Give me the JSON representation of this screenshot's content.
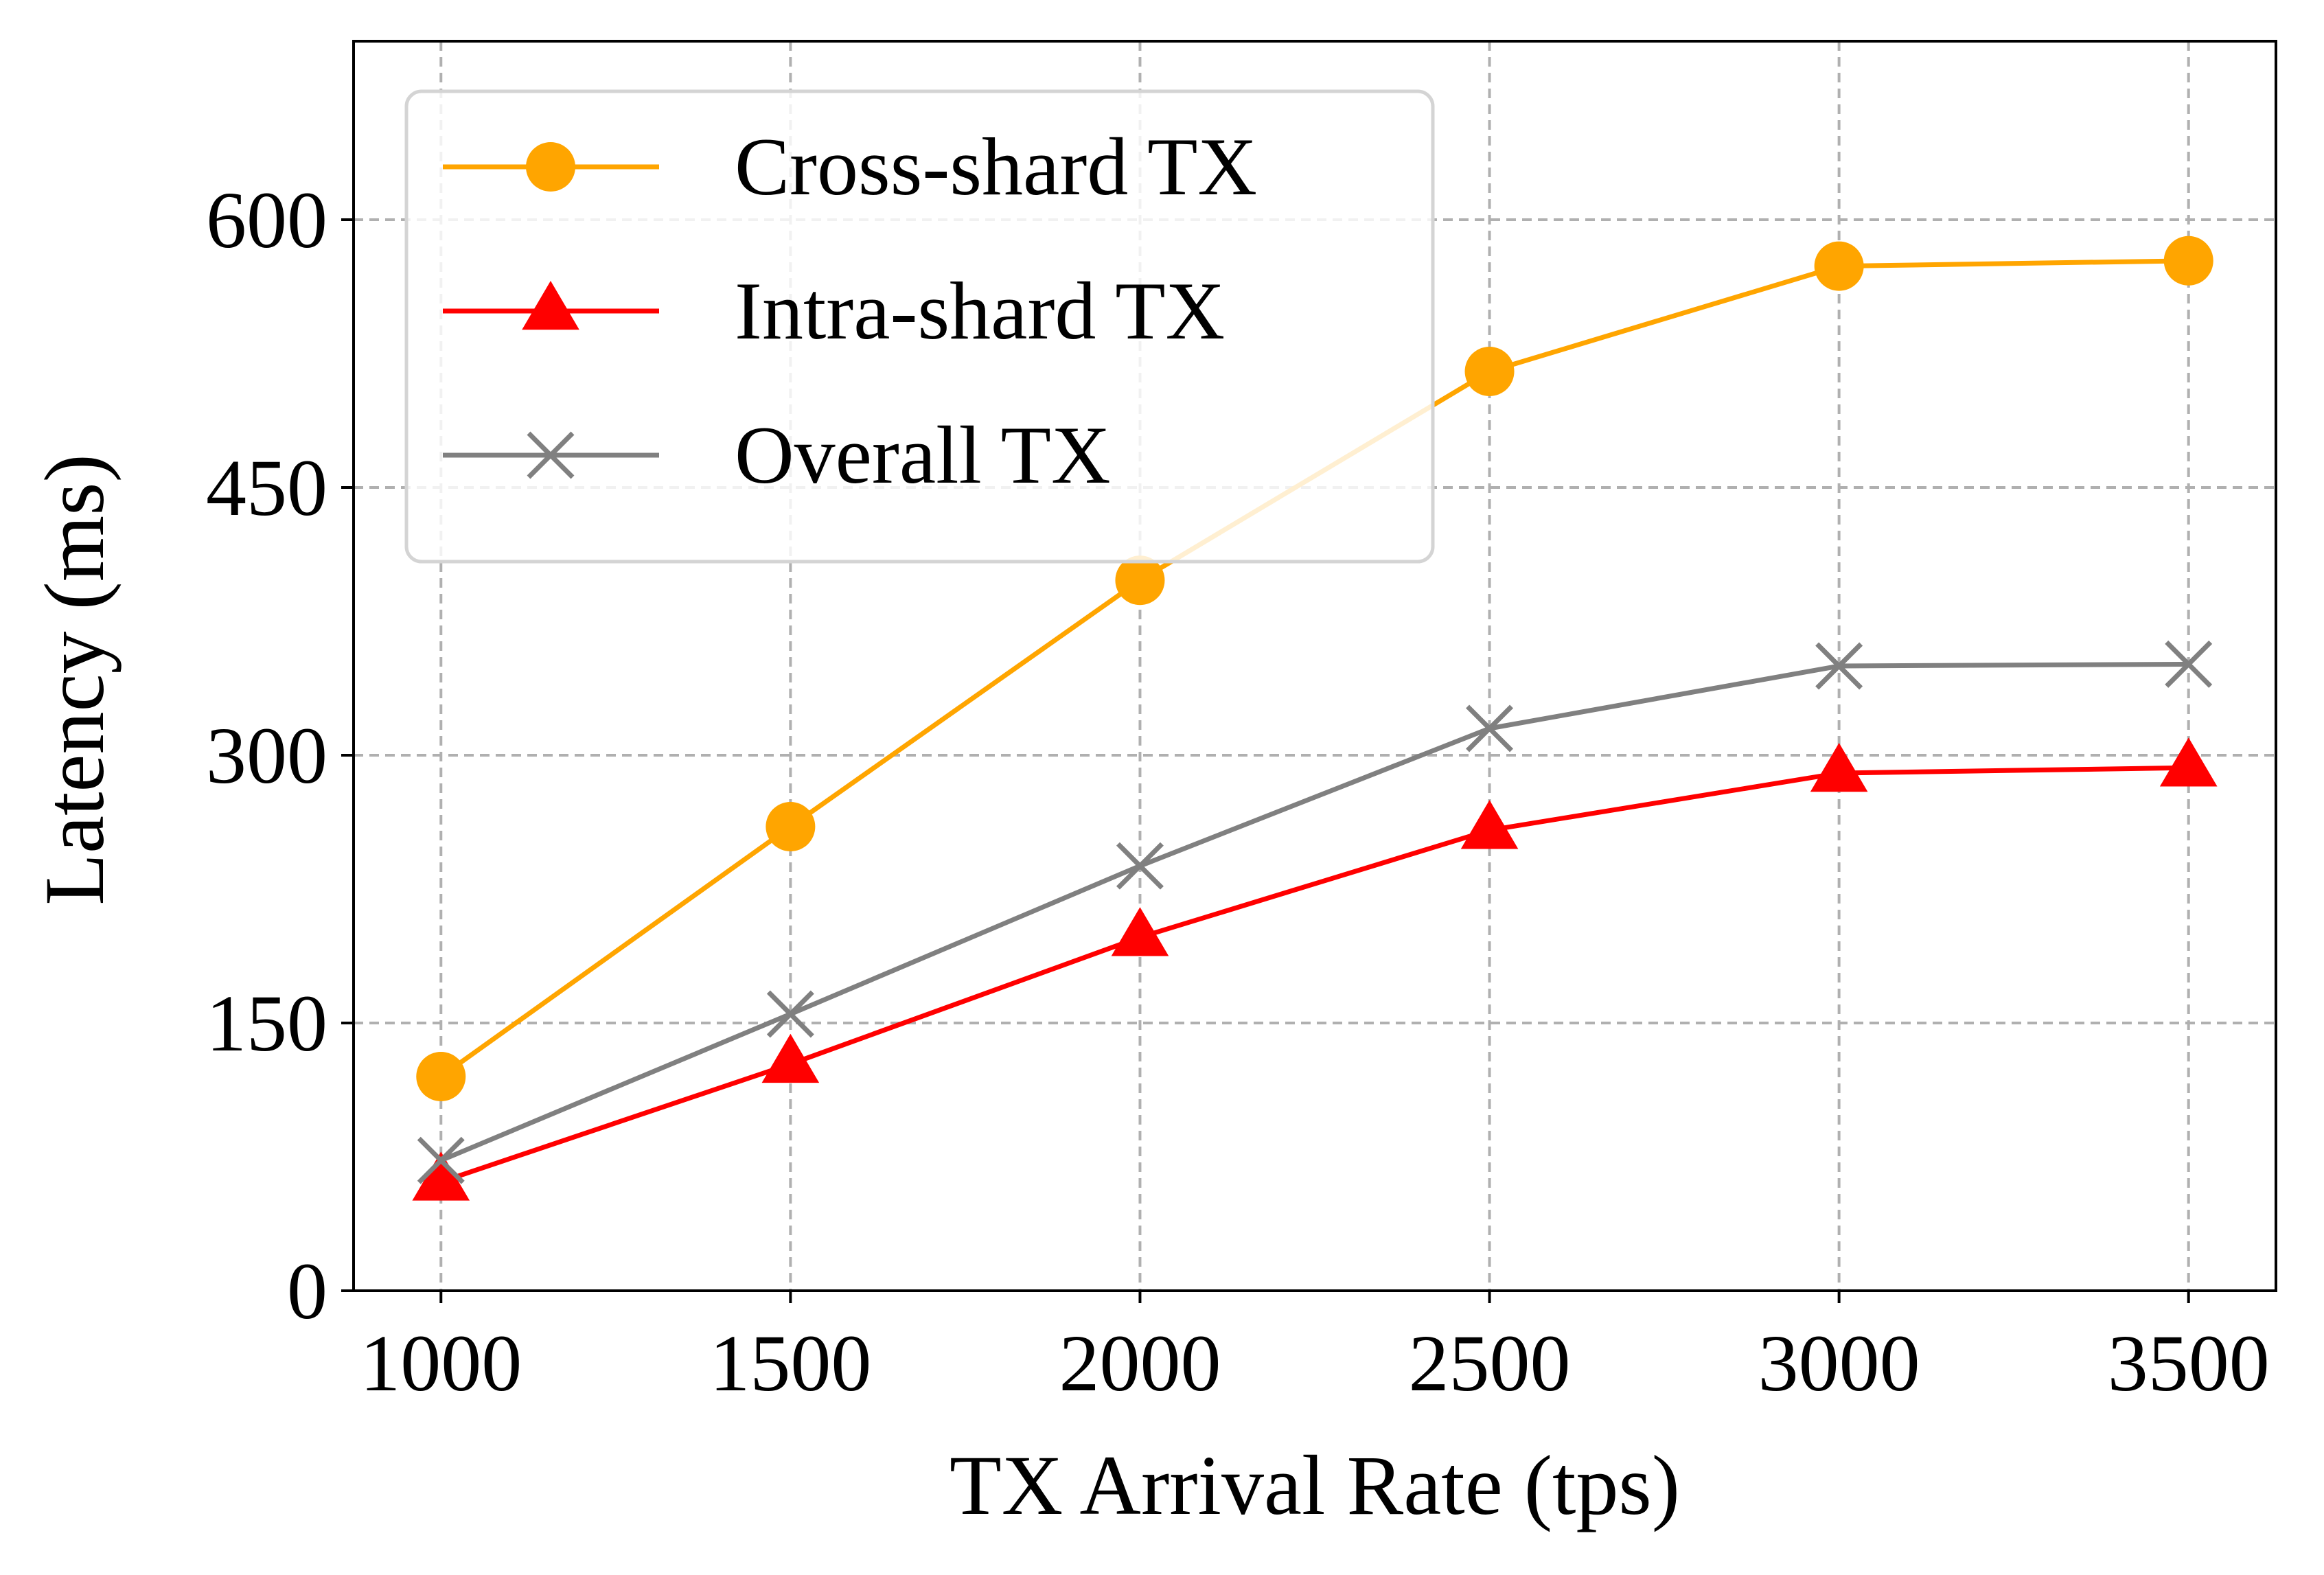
{
  "chart_data": {
    "type": "line",
    "title": "",
    "xlabel": "TX Arrival Rate (tps)",
    "ylabel": "Latency (ms)",
    "x": [
      1000,
      1500,
      2000,
      2500,
      3000,
      3500
    ],
    "x_tick_labels": [
      "1000",
      "1500",
      "2000",
      "2500",
      "3000",
      "3500"
    ],
    "xlim": [
      875,
      3625
    ],
    "ylim": [
      0,
      700
    ],
    "y_ticks": [
      0,
      150,
      300,
      450,
      600
    ],
    "y_tick_labels": [
      "0",
      "150",
      "300",
      "450",
      "600"
    ],
    "grid": true,
    "grid_style": "dashed",
    "legend_position": "top-left",
    "series": [
      {
        "name": "Cross-shard TX",
        "color": "#FFA500",
        "marker": "circle",
        "values": [
          120,
          260,
          398,
          515,
          574,
          577
        ]
      },
      {
        "name": "Intra-shard TX",
        "color": "#FF0000",
        "marker": "triangle",
        "values": [
          61,
          127,
          198,
          258,
          290,
          293
        ]
      },
      {
        "name": "Overall TX",
        "color": "#808080",
        "marker": "x",
        "values": [
          73,
          155,
          238,
          315,
          350,
          351
        ]
      }
    ]
  }
}
